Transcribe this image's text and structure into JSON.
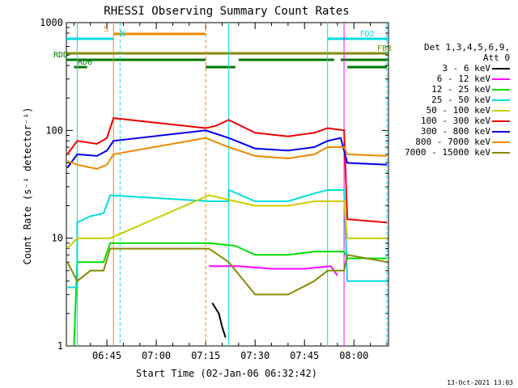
{
  "chart_data": {
    "type": "line",
    "title": "RHESSI Observing Summary Count Rates",
    "xlabel": "Start Time (02-Jan-06 06:32:42)",
    "ylabel": "Count Rate (s⁻¹ detector⁻¹)",
    "y_scale": "log",
    "ylim": [
      1,
      1000
    ],
    "xlim": [
      "06:32:42",
      "08:10:30"
    ],
    "x_ticks": [
      "06:45",
      "07:00",
      "07:15",
      "07:30",
      "07:45",
      "08:00"
    ],
    "y_ticks": [
      "1",
      "10",
      "100",
      "1000"
    ],
    "legend": {
      "header": [
        "Det 1,3,4,5,6,9,",
        "Att 0"
      ],
      "placement": "right",
      "entries": [
        {
          "label": "3 - 6 keV",
          "color": "#000000"
        },
        {
          "label": "6 - 12 keV",
          "color": "#ff00ff"
        },
        {
          "label": "12 - 25 keV",
          "color": "#00dd00"
        },
        {
          "label": "25 - 50 keV",
          "color": "#00dddd"
        },
        {
          "label": "50 - 100 keV",
          "color": "#cccc00"
        },
        {
          "label": "100 - 300 keV",
          "color": "#ee0000"
        },
        {
          "label": "300 - 800 keV",
          "color": "#0000ee"
        },
        {
          "label": "800 - 7000 keV",
          "color": "#ee8800"
        },
        {
          "label": "7000 - 15000 keV",
          "color": "#888800"
        }
      ]
    },
    "flag_bars": [
      {
        "label": "S",
        "color": "#ee8800",
        "segments": [
          [
            "06:47",
            "07:15"
          ]
        ]
      },
      {
        "label": "N",
        "color": "#00dddd",
        "segments": [
          [
            "06:32:42",
            "06:47"
          ],
          [
            "07:52",
            "08:10:30"
          ]
        ]
      },
      {
        "label": "FD2",
        "color": "#00dddd",
        "segments": [
          [
            "07:52",
            "08:10:30"
          ]
        ]
      },
      {
        "label": "FB3",
        "color": "#888800",
        "segments": [
          [
            "06:32:42",
            "08:10:30"
          ]
        ]
      },
      {
        "label": "RDD",
        "color": "#007700",
        "segments": [
          [
            "06:32:42",
            "07:15"
          ],
          [
            "07:25",
            "07:54"
          ],
          [
            "07:56",
            "08:10:30"
          ]
        ]
      },
      {
        "label": "RD6",
        "color": "#007700",
        "segments": [
          [
            "06:35",
            "06:39"
          ],
          [
            "07:15",
            "07:24"
          ],
          [
            "07:58",
            "08:10"
          ]
        ]
      }
    ],
    "series": [
      {
        "name": "3 - 6 keV",
        "points": [
          [
            "07:17",
            2.5
          ],
          [
            "07:19",
            2.0
          ],
          [
            "07:20",
            1.5
          ],
          [
            "07:21",
            1.2
          ]
        ]
      },
      {
        "name": "6 - 12 keV",
        "points": [
          [
            "07:16",
            5.5
          ],
          [
            "07:25",
            5.5
          ],
          [
            "07:35",
            5.2
          ],
          [
            "07:45",
            5.2
          ],
          [
            "07:53",
            5.5
          ],
          [
            "07:55",
            4.5
          ]
        ]
      },
      {
        "name": "12 - 25 keV",
        "points": [
          [
            "06:35",
            1.0
          ],
          [
            "06:36",
            6.0
          ],
          [
            "06:40",
            6.0
          ],
          [
            "06:44",
            6.0
          ],
          [
            "06:46",
            9.0
          ],
          [
            "07:16",
            9.0
          ],
          [
            "07:24",
            8.5
          ],
          [
            "07:30",
            7.0
          ],
          [
            "07:40",
            7.0
          ],
          [
            "07:48",
            7.5
          ],
          [
            "07:52",
            7.5
          ],
          [
            "07:57",
            7.5
          ],
          [
            "07:58",
            6.5
          ],
          [
            "08:10",
            6.5
          ]
        ]
      },
      {
        "name": "25 - 50 keV",
        "points": [
          [
            "06:33",
            3.5
          ],
          [
            "06:36",
            3.5
          ],
          [
            "06:36",
            14
          ],
          [
            "06:40",
            16
          ],
          [
            "06:44",
            17
          ],
          [
            "06:46",
            25
          ],
          [
            "07:16",
            22
          ],
          [
            "07:22",
            22
          ],
          [
            "07:22",
            28
          ],
          [
            "07:30",
            22
          ],
          [
            "07:40",
            22
          ],
          [
            "07:48",
            26
          ],
          [
            "07:52",
            28
          ],
          [
            "07:57",
            28
          ],
          [
            "07:58",
            4
          ],
          [
            "08:10",
            4
          ]
        ]
      },
      {
        "name": "50 - 100 keV",
        "points": [
          [
            "06:33",
            8
          ],
          [
            "06:36",
            10
          ],
          [
            "06:40",
            10
          ],
          [
            "06:46",
            10
          ],
          [
            "07:16",
            25
          ],
          [
            "07:24",
            22
          ],
          [
            "07:30",
            20
          ],
          [
            "07:40",
            20
          ],
          [
            "07:48",
            22
          ],
          [
            "07:52",
            22
          ],
          [
            "07:57",
            22
          ],
          [
            "07:58",
            10
          ],
          [
            "08:10",
            10
          ]
        ]
      },
      {
        "name": "100 - 300 keV",
        "points": [
          [
            "06:33",
            60
          ],
          [
            "06:36",
            80
          ],
          [
            "06:42",
            75
          ],
          [
            "06:45",
            85
          ],
          [
            "06:47",
            130
          ],
          [
            "07:15",
            105
          ],
          [
            "07:18",
            110
          ],
          [
            "07:22",
            125
          ],
          [
            "07:30",
            95
          ],
          [
            "07:40",
            88
          ],
          [
            "07:48",
            95
          ],
          [
            "07:52",
            105
          ],
          [
            "07:57",
            100
          ],
          [
            "07:58",
            15
          ],
          [
            "08:10",
            14
          ]
        ]
      },
      {
        "name": "300 - 800 keV",
        "points": [
          [
            "06:33",
            45
          ],
          [
            "06:36",
            60
          ],
          [
            "06:42",
            58
          ],
          [
            "06:45",
            65
          ],
          [
            "06:47",
            80
          ],
          [
            "07:15",
            100
          ],
          [
            "07:22",
            85
          ],
          [
            "07:30",
            68
          ],
          [
            "07:40",
            65
          ],
          [
            "07:48",
            70
          ],
          [
            "07:52",
            80
          ],
          [
            "07:56",
            85
          ],
          [
            "07:58",
            50
          ],
          [
            "08:10",
            48
          ]
        ]
      },
      {
        "name": "800 - 7000 keV",
        "points": [
          [
            "06:33",
            52
          ],
          [
            "06:36",
            48
          ],
          [
            "06:42",
            44
          ],
          [
            "06:45",
            48
          ],
          [
            "06:47",
            60
          ],
          [
            "07:15",
            85
          ],
          [
            "07:22",
            70
          ],
          [
            "07:30",
            58
          ],
          [
            "07:40",
            55
          ],
          [
            "07:48",
            60
          ],
          [
            "07:52",
            70
          ],
          [
            "07:57",
            70
          ],
          [
            "07:58",
            60
          ],
          [
            "08:10",
            58
          ]
        ]
      },
      {
        "name": "7000 - 15000 keV",
        "points": [
          [
            "06:33",
            6
          ],
          [
            "06:36",
            4
          ],
          [
            "06:40",
            5
          ],
          [
            "06:44",
            5
          ],
          [
            "06:46",
            8
          ],
          [
            "07:16",
            8
          ],
          [
            "07:22",
            6
          ],
          [
            "07:30",
            3
          ],
          [
            "07:40",
            3
          ],
          [
            "07:48",
            4
          ],
          [
            "07:52",
            5
          ],
          [
            "07:57",
            5
          ],
          [
            "07:58",
            7
          ],
          [
            "08:10",
            6
          ]
        ]
      }
    ]
  },
  "footer": {
    "timestamp": "13-Oct-2021 13:03"
  }
}
